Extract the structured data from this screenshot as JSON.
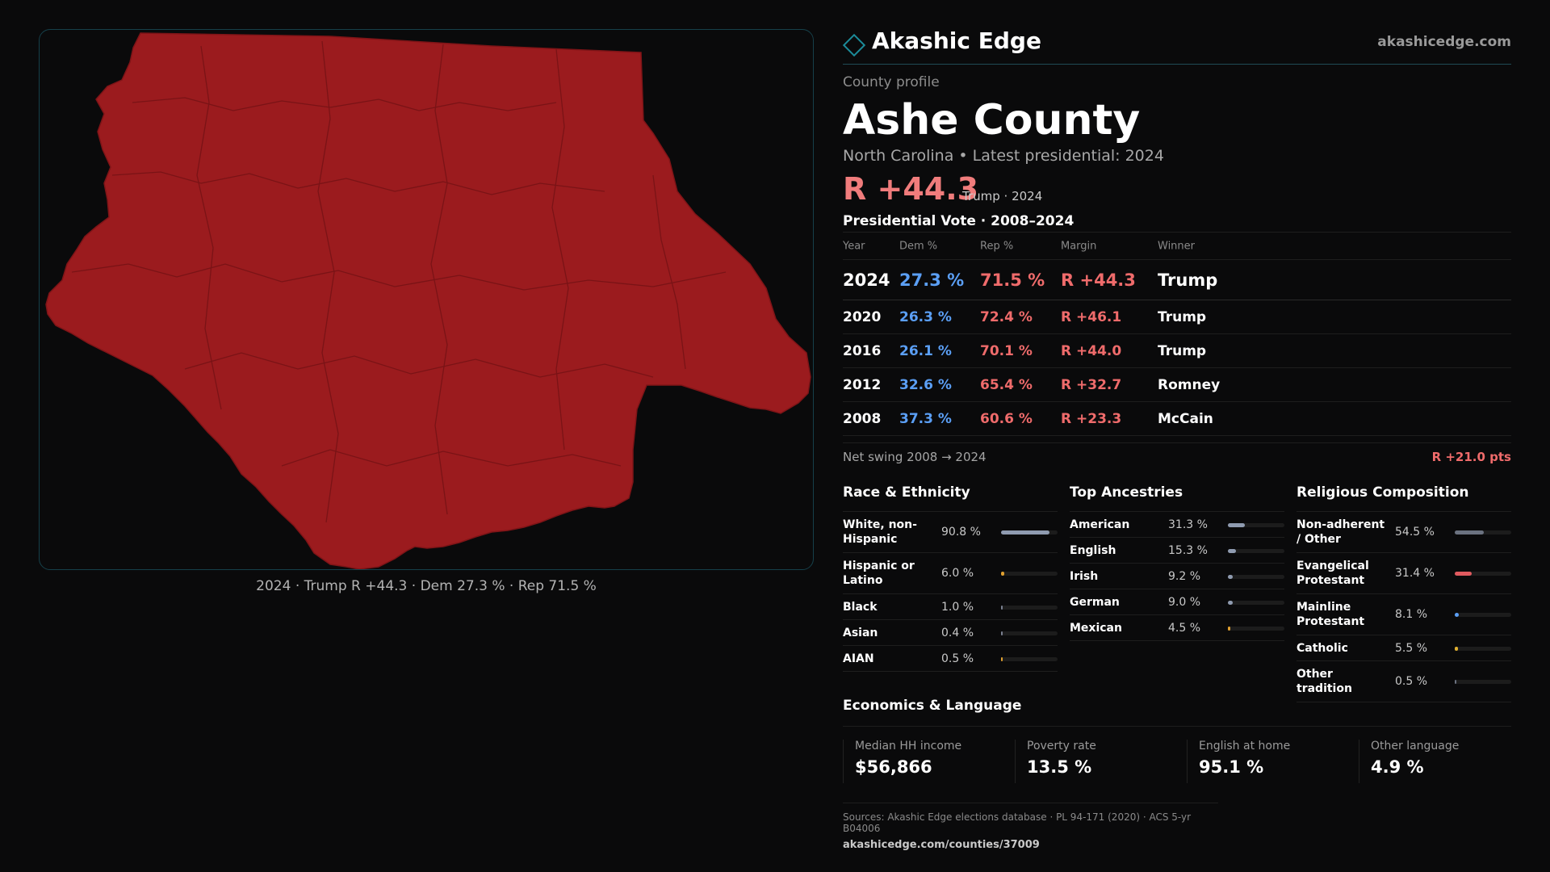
{
  "brand": {
    "name": "Akashic Edge",
    "url": "akashicedge.com"
  },
  "map": {
    "fill_color": "#9b1b1e",
    "caption": "2024 · Trump R +44.3 · Dem 27.3 % · Rep 71.5 %"
  },
  "profile": {
    "kicker": "County profile",
    "title": "Ashe County",
    "subtitle": "North Carolina • Latest presidential: 2024",
    "headline_margin": "R +44.3",
    "headline_note": "Trump · 2024"
  },
  "vote": {
    "heading": "Presidential Vote · 2008–2024",
    "columns": [
      "Year",
      "Dem %",
      "Rep %",
      "Margin",
      "Winner"
    ],
    "rows": [
      {
        "year": "2024",
        "dem": "27.3 %",
        "rep": "71.5 %",
        "margin": "R +44.3",
        "winner": "Trump"
      },
      {
        "year": "2020",
        "dem": "26.3 %",
        "rep": "72.4 %",
        "margin": "R +46.1",
        "winner": "Trump"
      },
      {
        "year": "2016",
        "dem": "26.1 %",
        "rep": "70.1 %",
        "margin": "R +44.0",
        "winner": "Trump"
      },
      {
        "year": "2012",
        "dem": "32.6 %",
        "rep": "65.4 %",
        "margin": "R +32.7",
        "winner": "Romney"
      },
      {
        "year": "2008",
        "dem": "37.3 %",
        "rep": "60.6 %",
        "margin": "R +23.3",
        "winner": "McCain"
      }
    ],
    "swing_label": "Net swing 2008 → 2024",
    "swing_value": "R +21.0 pts"
  },
  "race": {
    "heading": "Race & Ethnicity",
    "items": [
      {
        "label": "White, non-Hispanic",
        "value": "90.8 %",
        "pct": 90.8,
        "color": "#8f9bb0"
      },
      {
        "label": "Hispanic or Latino",
        "value": "6.0 %",
        "pct": 6.0,
        "color": "#e0a030"
      },
      {
        "label": "Black",
        "value": "1.0 %",
        "pct": 1.0,
        "color": "#7a8090"
      },
      {
        "label": "Asian",
        "value": "0.4 %",
        "pct": 0.4,
        "color": "#7a8090"
      },
      {
        "label": "AIAN",
        "value": "0.5 %",
        "pct": 0.5,
        "color": "#e0a030"
      }
    ]
  },
  "ancestry": {
    "heading": "Top Ancestries",
    "items": [
      {
        "label": "American",
        "value": "31.3 %",
        "pct": 31.3,
        "color": "#8f9bb0"
      },
      {
        "label": "English",
        "value": "15.3 %",
        "pct": 15.3,
        "color": "#8f9bb0"
      },
      {
        "label": "Irish",
        "value": "9.2 %",
        "pct": 9.2,
        "color": "#8f9bb0"
      },
      {
        "label": "German",
        "value": "9.0 %",
        "pct": 9.0,
        "color": "#8f9bb0"
      },
      {
        "label": "Mexican",
        "value": "4.5 %",
        "pct": 4.5,
        "color": "#e0a030"
      }
    ]
  },
  "religion": {
    "heading": "Religious Composition",
    "items": [
      {
        "label": "Non-adherent / Other",
        "value": "54.5 %",
        "pct": 54.5,
        "color": "#6b7280"
      },
      {
        "label": "Evangelical Protestant",
        "value": "31.4 %",
        "pct": 31.4,
        "color": "#e05a5f"
      },
      {
        "label": "Mainline Protestant",
        "value": "8.1 %",
        "pct": 8.1,
        "color": "#5b9ff5"
      },
      {
        "label": "Catholic",
        "value": "5.5 %",
        "pct": 5.5,
        "color": "#e0b030"
      },
      {
        "label": "Other tradition",
        "value": "0.5 %",
        "pct": 0.5,
        "color": "#6b7280"
      }
    ]
  },
  "economics": {
    "heading": "Economics & Language",
    "items": [
      {
        "label": "Median HH income",
        "value": "$56,866"
      },
      {
        "label": "Poverty rate",
        "value": "13.5 %"
      },
      {
        "label": "English at home",
        "value": "95.1 %"
      },
      {
        "label": "Other language",
        "value": "4.9 %"
      }
    ]
  },
  "sources": {
    "line1": "Sources: Akashic Edge elections database · PL 94-171 (2020) · ACS 5-yr B04006",
    "line2": "akashicedge.com/counties/37009"
  }
}
